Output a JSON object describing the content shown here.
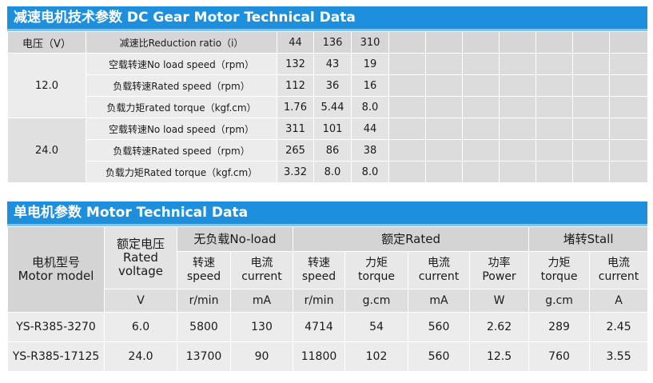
{
  "section1": {
    "title": "减速电机技术参数 DC Gear Motor Technical Data",
    "voltage_header": "电压（V）",
    "ratio_label": "减速比Reduction ratio（i）",
    "ratios": [
      "44",
      "136",
      "310"
    ],
    "groups": [
      {
        "voltage": "12.0",
        "rows": [
          {
            "label": "空载转速No load speed（rpm）",
            "values": [
              "132",
              "43",
              "19"
            ]
          },
          {
            "label": "负载转速Rated speed（rpm）",
            "values": [
              "112",
              "36",
              "16"
            ]
          },
          {
            "label": "负载力矩rated torque（kgf.cm）",
            "values": [
              "1.76",
              "5.44",
              "8.0"
            ]
          }
        ]
      },
      {
        "voltage": "24.0",
        "rows": [
          {
            "label": "空载转速No load speed（rpm）",
            "values": [
              "311",
              "101",
              "44"
            ]
          },
          {
            "label": "负载转速Rated speed（rpm）",
            "values": [
              "265",
              "86",
              "38"
            ]
          },
          {
            "label": "负载力矩Rated torque（kgf.cm）",
            "values": [
              "3.32",
              "8.0",
              "8.0"
            ]
          }
        ]
      }
    ]
  },
  "section2": {
    "title": "单电机参数  Motor Technical Data",
    "model_header": "电机型号\nMotor model",
    "voltage_header": "额定电压\nRated\nvoltage",
    "groups": {
      "no_load": "无负载No-load",
      "rated": "额定Rated",
      "stall": "堵转Stall"
    },
    "subheaders": [
      "转速\nspeed",
      "电流\ncurrent",
      "转速\nspeed",
      "力矩\ntorque",
      "电流\ncurrent",
      "功率\nPower",
      "力矩\ntorque",
      "电流\ncurrent"
    ],
    "units": [
      "V",
      "r/min",
      "mA",
      "r/min",
      "g.cm",
      "mA",
      "W",
      "g.cm",
      "A"
    ],
    "rows": [
      {
        "model": "YS-R385-3270",
        "values": [
          "6.0",
          "5800",
          "130",
          "4714",
          "54",
          "560",
          "2.62",
          "289",
          "2.45"
        ]
      },
      {
        "model": "YS-R385-17125",
        "values": [
          "24.0",
          "13700",
          "90",
          "11800",
          "102",
          "560",
          "12.5",
          "760",
          "3.55"
        ]
      }
    ]
  }
}
